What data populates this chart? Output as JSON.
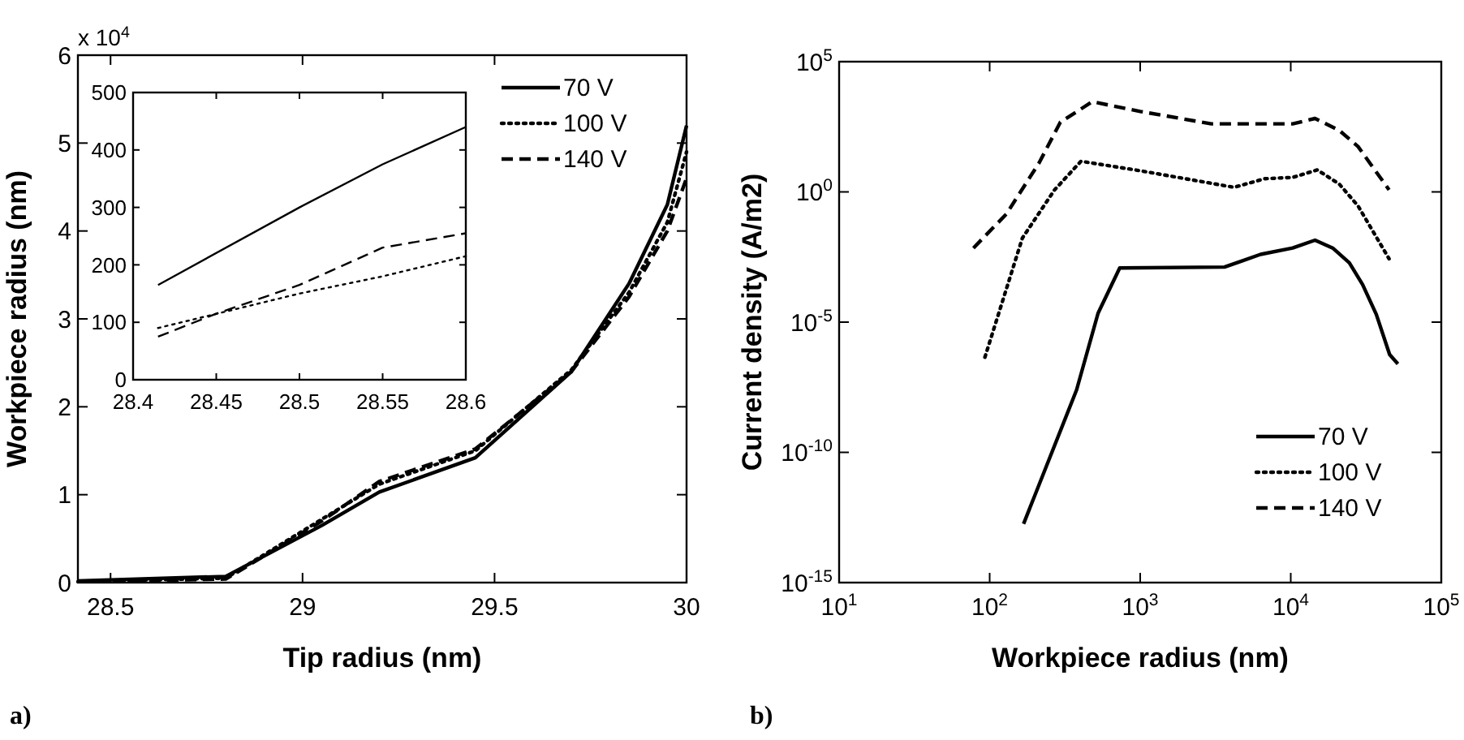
{
  "chart_data": [
    {
      "type": "line",
      "xlabel": "Tip radius (nm)",
      "ylabel": "Workpiece radius (nm)",
      "annotations": [
        "x 10$^{4}$",
        "a)"
      ],
      "xlim": [
        28.415,
        30
      ],
      "ylim": [
        0,
        6
      ],
      "xticks": [
        28.5,
        29,
        29.5,
        30
      ],
      "yticks": [
        0,
        1,
        2,
        3,
        4,
        5,
        6
      ],
      "legend": "top right",
      "series": [
        {
          "name": "70 V",
          "color": "#000000",
          "line_style": "solid",
          "x": [
            28.415,
            28.8,
            29.05,
            29.2,
            29.45,
            29.7,
            29.85,
            29.95,
            30
          ],
          "values": [
            0.02,
            0.07,
            0.65,
            1.03,
            1.42,
            2.4,
            3.4,
            4.3,
            5.2
          ]
        },
        {
          "name": "100 V",
          "color": "#000000",
          "line_style": "dotted",
          "x": [
            28.415,
            28.8,
            29.05,
            29.2,
            29.45,
            29.7,
            29.85,
            29.95,
            30
          ],
          "values": [
            0.01,
            0.05,
            0.72,
            1.12,
            1.5,
            2.42,
            3.3,
            4.1,
            4.9
          ]
        },
        {
          "name": "140 V",
          "color": "#000000",
          "line_style": "dashed",
          "x": [
            28.415,
            28.8,
            29.05,
            29.2,
            29.45,
            29.7,
            29.85,
            29.95,
            30
          ],
          "values": [
            0.01,
            0.04,
            0.7,
            1.15,
            1.52,
            2.4,
            3.25,
            4.0,
            4.6
          ]
        }
      ]
    },
    {
      "type": "line",
      "xlim": [
        28.4,
        28.6
      ],
      "ylim": [
        0,
        500
      ],
      "xticks": [
        28.4,
        28.45,
        28.5,
        28.55,
        28.6
      ],
      "yticks": [
        0,
        100,
        200,
        300,
        400,
        500
      ],
      "series": [
        {
          "color": "#000000",
          "line_style": "solid",
          "x": [
            28.415,
            28.5,
            28.55,
            28.6
          ],
          "values": [
            165,
            300,
            375,
            440
          ]
        },
        {
          "color": "#000000",
          "line_style": "dotted",
          "x": [
            28.415,
            28.5,
            28.55,
            28.6
          ],
          "values": [
            90,
            150,
            180,
            215
          ]
        },
        {
          "color": "#000000",
          "line_style": "dashed",
          "x": [
            28.415,
            28.45,
            28.5,
            28.55,
            28.6
          ],
          "values": [
            75,
            115,
            165,
            230,
            255
          ]
        }
      ]
    },
    {
      "type": "line",
      "xlabel": "Workpiece radius (nm)",
      "ylabel": "Current density (A/m2)",
      "annotations": [
        "b)"
      ],
      "log": "xy",
      "xlim": [
        10,
        100000
      ],
      "ylim": [
        1e-15,
        100000
      ],
      "xticks": [
        {
          "value": 10,
          "label": "10$^{1}$"
        },
        {
          "value": 100,
          "label": "10$^{2}$"
        },
        {
          "value": 1000,
          "label": "10$^{3}$"
        },
        {
          "value": 10000,
          "label": "10$^{4}$"
        },
        {
          "value": 100000,
          "label": "10$^{5}$"
        }
      ],
      "yticks": [
        {
          "value": 1e-15,
          "label": "10$^{-15}$"
        },
        {
          "value": 1e-10,
          "label": "10$^{-10}$"
        },
        {
          "value": 1e-05,
          "label": "10$^{-5}$"
        },
        {
          "value": 1,
          "label": "10$^{0}$"
        },
        {
          "value": 100000,
          "label": "10$^{5}$"
        }
      ],
      "legend": "bottom right",
      "series": [
        {
          "name": "70 V",
          "color": "#000000",
          "line_style": "solid",
          "x": [
            168,
            378,
            525,
            731,
            3630,
            6300,
            10300,
            14500,
            19000,
            24500,
            30000,
            37000,
            45400,
            51500
          ],
          "values": [
            1.8e-13,
            2.5e-08,
            2.2e-05,
            0.0012,
            0.0013,
            0.004,
            0.007,
            0.014,
            0.007,
            0.0019,
            0.00028,
            2e-05,
            5.7e-07,
            2.5e-07
          ]
        },
        {
          "name": "100 V",
          "color": "#000000",
          "line_style": "dotted",
          "x": [
            93,
            165,
            270,
            404,
            1000,
            4200,
            6700,
            10300,
            15000,
            21000,
            28000,
            45000
          ],
          "values": [
            4.5e-07,
            0.017,
            1.2,
            15,
            6.5,
            1.5,
            3.2,
            3.6,
            7,
            2,
            0.29,
            0.0027
          ]
        },
        {
          "name": "140 V",
          "color": "#000000",
          "line_style": "dashed",
          "x": [
            78,
            129,
            213,
            295,
            480,
            1000,
            2970,
            10300,
            14500,
            21000,
            28000,
            45000
          ],
          "values": [
            0.007,
            0.14,
            13,
            475,
            2900,
            1230,
            410,
            410,
            660,
            230,
            55,
            1.2
          ]
        }
      ]
    }
  ]
}
